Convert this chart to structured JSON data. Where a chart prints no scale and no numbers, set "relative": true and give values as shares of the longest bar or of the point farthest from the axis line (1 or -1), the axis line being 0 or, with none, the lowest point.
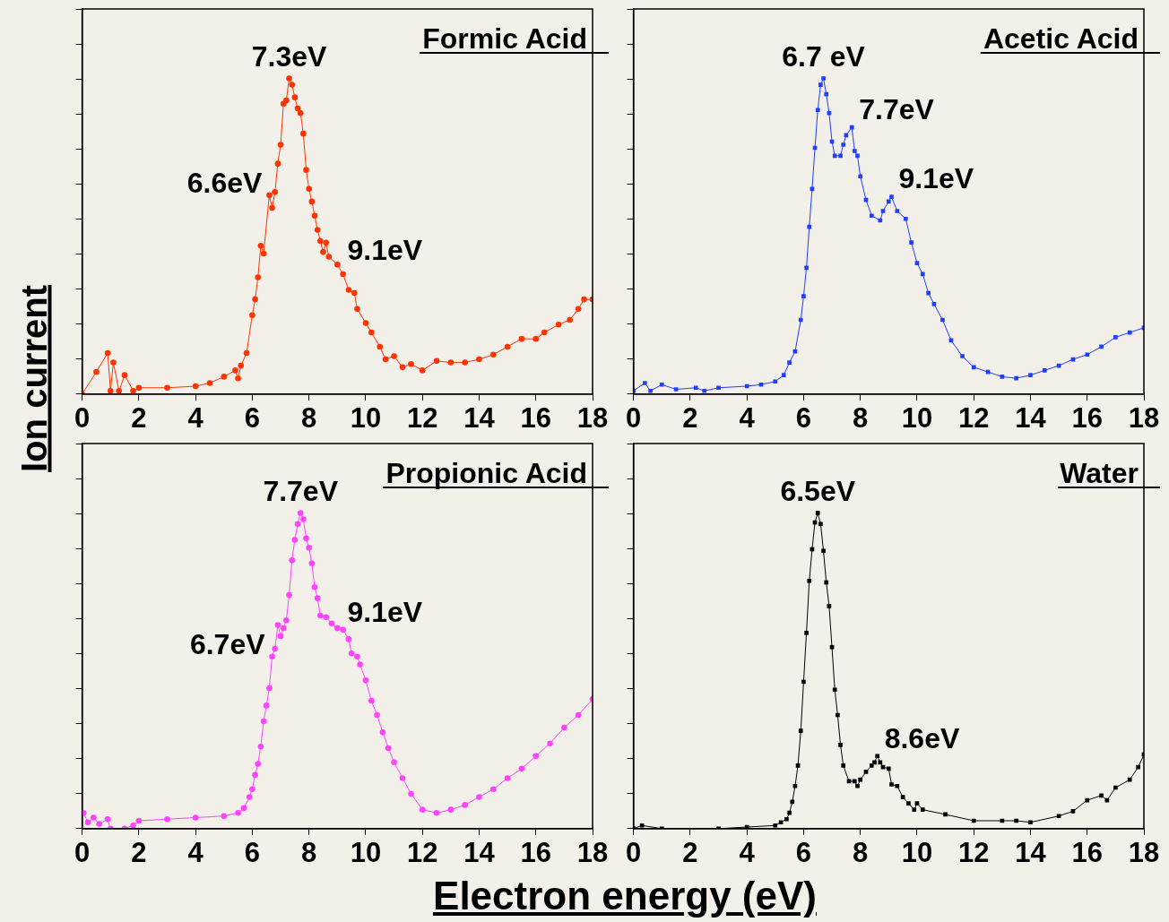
{
  "chart_data": [
    {
      "type": "line",
      "title": "Formic Acid",
      "xlabel": "Electron energy (eV)",
      "ylabel": "Ion current",
      "relative": true,
      "marker": "circle",
      "line_style": "solid",
      "tick_labels": "x",
      "xlim": [
        0,
        18
      ],
      "xticks": [
        0,
        2,
        4,
        6,
        8,
        10,
        12,
        14,
        16,
        18
      ],
      "annotations": [
        {
          "text": "7.3eV",
          "x": 7.3,
          "y": 1.0
        },
        {
          "text": "6.6eV",
          "x": 6.6,
          "y": 0.63
        },
        {
          "text": "9.1eV",
          "x": 9.1,
          "y": 0.4
        }
      ],
      "series": [
        {
          "color": "#ff3300",
          "x": [
            0,
            0.5,
            0.9,
            1.0,
            1.1,
            1.3,
            1.5,
            1.8,
            2.0,
            3,
            4,
            4.5,
            5.0,
            5.4,
            5.5,
            5.6,
            5.8,
            6.0,
            6.1,
            6.2,
            6.3,
            6.4,
            6.6,
            6.7,
            6.8,
            6.9,
            7.0,
            7.1,
            7.2,
            7.3,
            7.4,
            7.5,
            7.6,
            7.7,
            7.8,
            7.9,
            8.0,
            8.1,
            8.2,
            8.3,
            8.4,
            8.5,
            8.6,
            8.7,
            9.0,
            9.2,
            9.4,
            9.6,
            9.7,
            10.0,
            10.2,
            10.5,
            10.7,
            11.0,
            11.3,
            11.6,
            12.0,
            12.5,
            13,
            13.5,
            14.0,
            14.5,
            15.0,
            15.5,
            16.0,
            16.3,
            16.8,
            17.2,
            17.5,
            17.7,
            18.0
          ],
          "values": [
            0,
            0.07,
            0.13,
            0.01,
            0.1,
            0.01,
            0.06,
            0.01,
            0.02,
            0.02,
            0.025,
            0.035,
            0.055,
            0.075,
            0.05,
            0.09,
            0.13,
            0.25,
            0.3,
            0.37,
            0.47,
            0.445,
            0.63,
            0.59,
            0.64,
            0.73,
            0.79,
            0.92,
            0.93,
            1.0,
            0.98,
            0.94,
            0.905,
            0.89,
            0.825,
            0.71,
            0.65,
            0.61,
            0.565,
            0.52,
            0.485,
            0.45,
            0.48,
            0.435,
            0.41,
            0.38,
            0.33,
            0.32,
            0.27,
            0.225,
            0.195,
            0.15,
            0.11,
            0.12,
            0.085,
            0.095,
            0.075,
            0.105,
            0.1,
            0.1,
            0.11,
            0.125,
            0.15,
            0.175,
            0.175,
            0.195,
            0.22,
            0.235,
            0.27,
            0.3,
            0.3
          ]
        }
      ]
    },
    {
      "type": "line",
      "title": "Acetic Acid",
      "relative": true,
      "marker": "square",
      "line_style": "solid",
      "tick_labels": "x",
      "xlim": [
        0,
        18
      ],
      "xticks": [
        0,
        2,
        4,
        6,
        8,
        10,
        12,
        14,
        16,
        18
      ],
      "annotations": [
        {
          "text": "6.7 eV",
          "x": 6.7,
          "y": 1.0
        },
        {
          "text": "7.7eV",
          "x": 7.7,
          "y": 0.845
        },
        {
          "text": "9.1eV",
          "x": 9.1,
          "y": 0.625
        }
      ],
      "series": [
        {
          "color": "#1f3fff",
          "x": [
            0,
            0.4,
            0.6,
            1.0,
            1.5,
            2.2,
            2.5,
            3,
            4,
            4.5,
            5.0,
            5.3,
            5.5,
            5.7,
            5.9,
            6.0,
            6.1,
            6.2,
            6.3,
            6.4,
            6.5,
            6.6,
            6.7,
            6.8,
            6.9,
            7.0,
            7.1,
            7.3,
            7.4,
            7.5,
            7.7,
            7.8,
            7.9,
            8.0,
            8.2,
            8.4,
            8.7,
            8.8,
            9.0,
            9.1,
            9.3,
            9.6,
            9.8,
            10.0,
            10.2,
            10.4,
            10.6,
            10.9,
            11.2,
            11.6,
            12.0,
            12.5,
            13.0,
            13.5,
            14.0,
            14.5,
            15.0,
            15.5,
            16.0,
            16.5,
            17.0,
            17.5,
            18.0
          ],
          "values": [
            0.01,
            0.035,
            0.01,
            0.03,
            0.015,
            0.02,
            0.01,
            0.02,
            0.025,
            0.03,
            0.04,
            0.06,
            0.1,
            0.135,
            0.235,
            0.31,
            0.4,
            0.53,
            0.65,
            0.78,
            0.9,
            0.98,
            1.0,
            0.95,
            0.89,
            0.8,
            0.755,
            0.755,
            0.79,
            0.82,
            0.845,
            0.77,
            0.755,
            0.69,
            0.615,
            0.565,
            0.55,
            0.58,
            0.61,
            0.625,
            0.58,
            0.555,
            0.48,
            0.415,
            0.38,
            0.32,
            0.285,
            0.235,
            0.17,
            0.12,
            0.085,
            0.07,
            0.055,
            0.05,
            0.06,
            0.075,
            0.09,
            0.11,
            0.125,
            0.15,
            0.18,
            0.195,
            0.21
          ]
        }
      ]
    },
    {
      "type": "line",
      "title": "Propionic Acid",
      "relative": true,
      "marker": "circle",
      "line_style": "solid",
      "tick_labels": "x",
      "xlim": [
        0,
        18
      ],
      "xticks": [
        0,
        2,
        4,
        6,
        8,
        10,
        12,
        14,
        16,
        18
      ],
      "annotations": [
        {
          "text": "7.7eV",
          "x": 7.7,
          "y": 1.0
        },
        {
          "text": "6.7eV",
          "x": 6.7,
          "y": 0.545
        },
        {
          "text": "9.1eV",
          "x": 9.1,
          "y": 0.63
        }
      ],
      "series": [
        {
          "color": "#ff44ff",
          "x": [
            0.05,
            0.2,
            0.4,
            0.6,
            0.9,
            1.0,
            1.5,
            1.8,
            2.0,
            3,
            4,
            5.0,
            5.5,
            5.7,
            5.9,
            6.0,
            6.1,
            6.2,
            6.3,
            6.4,
            6.5,
            6.6,
            6.7,
            6.8,
            6.9,
            7.0,
            7.1,
            7.2,
            7.3,
            7.4,
            7.5,
            7.6,
            7.7,
            7.8,
            7.9,
            8.0,
            8.1,
            8.2,
            8.3,
            8.4,
            8.6,
            8.8,
            9.0,
            9.2,
            9.4,
            9.5,
            9.7,
            9.8,
            10.0,
            10.2,
            10.4,
            10.6,
            10.8,
            11.0,
            11.3,
            11.6,
            12.0,
            12.5,
            13.0,
            13.5,
            14.0,
            14.5,
            15.0,
            15.5,
            16.0,
            16.5,
            17.0,
            17.5,
            18.0
          ],
          "values": [
            0.05,
            0.02,
            0.035,
            0.015,
            0.03,
            0,
            0,
            0.01,
            0.025,
            0.03,
            0.035,
            0.04,
            0.05,
            0.065,
            0.1,
            0.125,
            0.17,
            0.205,
            0.26,
            0.34,
            0.39,
            0.445,
            0.545,
            0.57,
            0.645,
            0.61,
            0.635,
            0.66,
            0.74,
            0.85,
            0.915,
            0.965,
            1.0,
            0.98,
            0.92,
            0.89,
            0.84,
            0.765,
            0.73,
            0.675,
            0.67,
            0.65,
            0.635,
            0.63,
            0.6,
            0.555,
            0.545,
            0.52,
            0.47,
            0.405,
            0.36,
            0.305,
            0.255,
            0.21,
            0.16,
            0.11,
            0.06,
            0.05,
            0.06,
            0.075,
            0.1,
            0.125,
            0.16,
            0.19,
            0.23,
            0.27,
            0.32,
            0.36,
            0.41
          ]
        }
      ]
    },
    {
      "type": "line",
      "title": "Water",
      "relative": true,
      "marker": "square",
      "line_style": "solid",
      "tick_labels": "x",
      "xlim": [
        0,
        18
      ],
      "xticks": [
        0,
        2,
        4,
        6,
        8,
        10,
        12,
        14,
        16,
        18
      ],
      "annotations": [
        {
          "text": "6.5eV",
          "x": 6.5,
          "y": 1.0
        },
        {
          "text": "8.6eV",
          "x": 8.6,
          "y": 0.23
        }
      ],
      "series": [
        {
          "color": "#000000",
          "x": [
            0,
            0.3,
            1,
            3,
            4,
            5.0,
            5.2,
            5.4,
            5.5,
            5.6,
            5.7,
            5.8,
            5.9,
            6.0,
            6.1,
            6.2,
            6.3,
            6.4,
            6.5,
            6.6,
            6.7,
            6.8,
            6.9,
            7.0,
            7.1,
            7.2,
            7.3,
            7.4,
            7.6,
            7.8,
            7.9,
            8.0,
            8.2,
            8.4,
            8.5,
            8.6,
            8.7,
            8.8,
            9.0,
            9.1,
            9.3,
            9.5,
            9.7,
            9.9,
            10.0,
            10.2,
            11,
            12,
            13,
            13.5,
            14,
            15,
            15.5,
            16.0,
            16.5,
            16.7,
            17.0,
            17.5,
            17.8,
            18.0
          ],
          "values": [
            0,
            0.01,
            0,
            0,
            0.005,
            0.01,
            0.02,
            0.03,
            0.05,
            0.085,
            0.135,
            0.2,
            0.31,
            0.465,
            0.62,
            0.785,
            0.885,
            0.97,
            1.0,
            0.965,
            0.88,
            0.78,
            0.705,
            0.575,
            0.44,
            0.36,
            0.265,
            0.2,
            0.15,
            0.15,
            0.135,
            0.155,
            0.18,
            0.2,
            0.21,
            0.23,
            0.21,
            0.195,
            0.19,
            0.14,
            0.135,
            0.1,
            0.08,
            0.06,
            0.08,
            0.06,
            0.045,
            0.025,
            0.025,
            0.025,
            0.02,
            0.04,
            0.055,
            0.09,
            0.105,
            0.09,
            0.13,
            0.155,
            0.195,
            0.235
          ]
        }
      ]
    }
  ]
}
